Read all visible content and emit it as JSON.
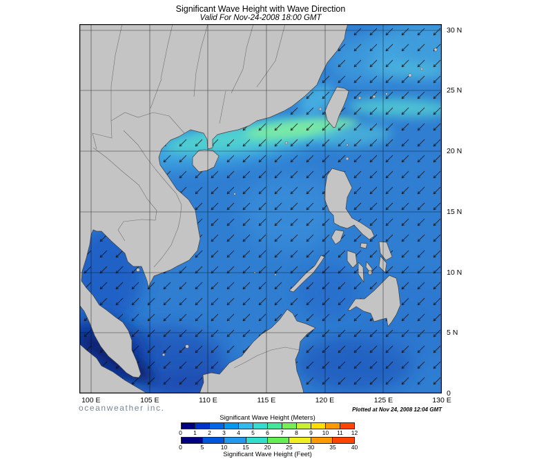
{
  "header": {
    "title": "Significant Wave Height with Wave Direction",
    "subtitle": "Valid For Nov-24-2008 18:00 GMT"
  },
  "footer": {
    "credit": "oceanweather inc.",
    "plotted": "Plotted at Nov 24, 2008 12:04 GMT"
  },
  "axes": {
    "x_ticks": [
      "100 E",
      "105 E",
      "110 E",
      "115 E",
      "120 E",
      "125 E",
      "130 E"
    ],
    "y_ticks": [
      "0",
      "5 N",
      "10 N",
      "15 N",
      "20 N",
      "25 N",
      "30 N"
    ]
  },
  "legend": {
    "meters": {
      "title": "Significant Wave Height (Meters)",
      "ticks": [
        "0",
        "1",
        "2",
        "3",
        "4",
        "5",
        "6",
        "7",
        "8",
        "9",
        "10",
        "11",
        "12"
      ],
      "colors": [
        "#000080",
        "#0033CC",
        "#0066E8",
        "#0099F0",
        "#33BBF0",
        "#33DDD0",
        "#44E89A",
        "#77EE55",
        "#CCEE33",
        "#FFDD00",
        "#FF9900",
        "#FF4400"
      ]
    },
    "feet": {
      "title": "Significant Wave Height (Feet)",
      "ticks": [
        "0",
        "5",
        "10",
        "15",
        "20",
        "25",
        "30",
        "35",
        "40"
      ],
      "colors": [
        "#000080",
        "#0055DD",
        "#2299EE",
        "#33DDCC",
        "#66EE55",
        "#EEEE22",
        "#FF9900",
        "#FF4400"
      ]
    }
  },
  "map": {
    "region": "South China Sea and Western Pacific (100E-130E, 0-30N)",
    "wave_direction": "arrows point from northeast toward southwest",
    "sea_base_color": "#2F7ED2",
    "land_color": "#C4C4C4",
    "peak_band": "2.5-4.5 m wave band along 20N-22N between Hainan and Taiwan",
    "calm_areas": "below 1 m in Malacca Strait, Gulf of Thailand and Java Sea"
  },
  "chart_data": {
    "type": "heatmap",
    "title": "Significant Wave Height with Wave Direction",
    "valid": "Nov-24-2008 18:00 GMT",
    "x_ticks_deg_e": [
      100,
      105,
      110,
      115,
      120,
      125,
      130
    ],
    "y_ticks_deg_n": [
      0,
      5,
      10,
      15,
      20,
      25,
      30
    ],
    "colorbar_meters_ticks": [
      0,
      1,
      2,
      3,
      4,
      5,
      6,
      7,
      8,
      9,
      10,
      11,
      12
    ],
    "colorbar_feet_ticks": [
      0,
      5,
      10,
      15,
      20,
      25,
      30,
      35,
      40
    ]
  }
}
